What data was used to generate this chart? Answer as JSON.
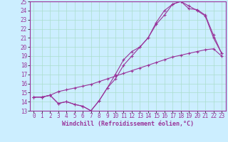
{
  "xlabel": "Windchill (Refroidissement éolien,°C)",
  "ylabel": "",
  "bg_color": "#cceeff",
  "grid_color": "#aaddcc",
  "line_color": "#993399",
  "xlim": [
    -0.5,
    23.5
  ],
  "ylim": [
    13,
    25
  ],
  "xticks": [
    0,
    1,
    2,
    3,
    4,
    5,
    6,
    7,
    8,
    9,
    10,
    11,
    12,
    13,
    14,
    15,
    16,
    17,
    18,
    19,
    20,
    21,
    22,
    23
  ],
  "yticks": [
    13,
    14,
    15,
    16,
    17,
    18,
    19,
    20,
    21,
    22,
    23,
    24,
    25
  ],
  "line1_x": [
    0,
    1,
    2,
    3,
    4,
    5,
    6,
    7,
    8,
    9,
    10,
    11,
    12,
    13,
    14,
    15,
    16,
    17,
    18,
    19,
    20,
    21,
    22,
    23
  ],
  "line1_y": [
    14.5,
    14.5,
    14.7,
    15.1,
    15.3,
    15.5,
    15.7,
    15.9,
    16.2,
    16.5,
    16.8,
    17.1,
    17.4,
    17.7,
    18.0,
    18.3,
    18.6,
    18.9,
    19.1,
    19.3,
    19.5,
    19.7,
    19.8,
    19.0
  ],
  "line2_x": [
    0,
    1,
    2,
    3,
    4,
    5,
    6,
    7,
    8,
    9,
    10,
    11,
    12,
    13,
    14,
    15,
    16,
    17,
    18,
    19,
    20,
    21,
    22,
    23
  ],
  "line2_y": [
    14.5,
    14.5,
    14.7,
    13.8,
    14.0,
    13.7,
    13.5,
    13.0,
    14.1,
    15.5,
    17.0,
    18.6,
    19.5,
    20.0,
    21.0,
    22.7,
    24.0,
    24.7,
    25.0,
    24.5,
    24.0,
    23.4,
    21.0,
    19.3
  ],
  "line3_x": [
    0,
    1,
    2,
    3,
    4,
    5,
    6,
    7,
    8,
    9,
    10,
    11,
    12,
    13,
    14,
    15,
    16,
    17,
    18,
    19,
    20,
    21,
    22,
    23
  ],
  "line3_y": [
    14.5,
    14.5,
    14.7,
    13.8,
    14.0,
    13.7,
    13.5,
    13.0,
    14.1,
    15.5,
    16.5,
    18.0,
    19.0,
    20.0,
    21.0,
    22.5,
    23.5,
    24.7,
    25.0,
    24.2,
    24.1,
    23.5,
    21.3,
    19.3
  ],
  "tick_fontsize": 5.5,
  "xlabel_fontsize": 6.0
}
